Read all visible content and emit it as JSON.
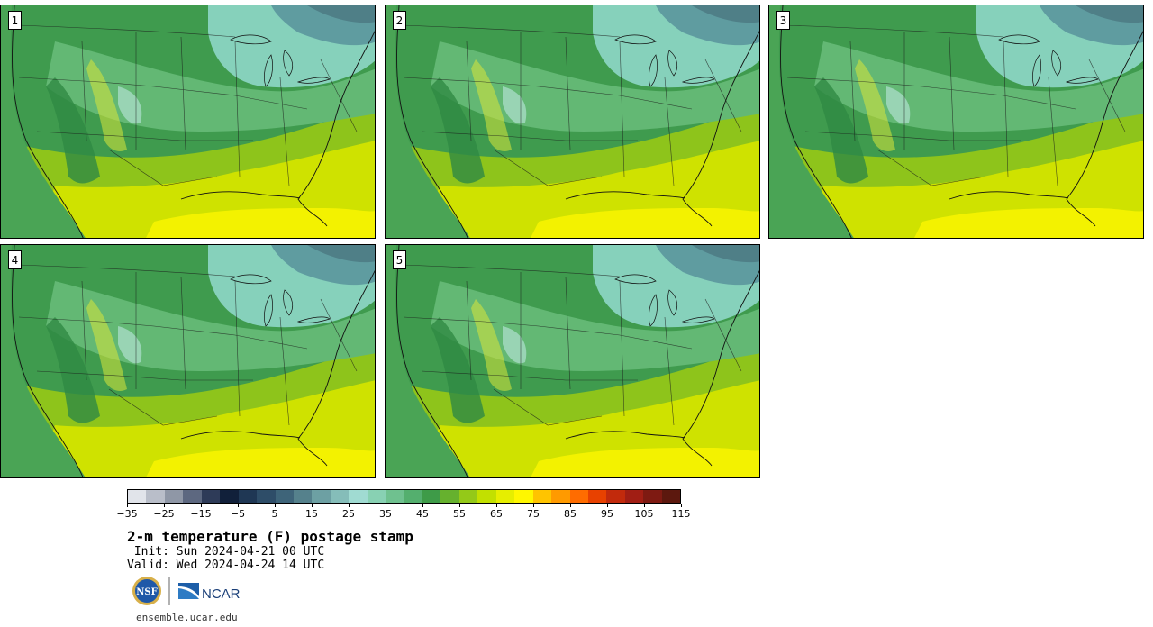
{
  "panels": [
    {
      "label": "1"
    },
    {
      "label": "2"
    },
    {
      "label": "3"
    },
    {
      "label": "4"
    },
    {
      "label": "5"
    }
  ],
  "colorbar": {
    "colors": [
      "#e1e4ea",
      "#b9bec9",
      "#8f97a6",
      "#5d6880",
      "#2e3b58",
      "#11203a",
      "#1f3754",
      "#2e4d68",
      "#3e6479",
      "#55818c",
      "#6da0a3",
      "#85bdb9",
      "#a0dbd2",
      "#88d1b3",
      "#6fc18f",
      "#54af6e",
      "#3e9b48",
      "#66b12e",
      "#94c918",
      "#c2e000",
      "#e6ee00",
      "#fff700",
      "#ffc400",
      "#ff9a00",
      "#ff6c00",
      "#e84100",
      "#c22a0c",
      "#a11e14",
      "#7e1a12",
      "#5c180e"
    ],
    "ticks": [
      "−35",
      "−25",
      "−15",
      "−5",
      "5",
      "15",
      "25",
      "35",
      "45",
      "55",
      "65",
      "75",
      "85",
      "95",
      "105",
      "115"
    ]
  },
  "title": "2-m temperature (F) postage stamp",
  "init": " Init: Sun 2024-04-21 00 UTC",
  "valid": "Valid: Wed 2024-04-24 14 UTC",
  "logos": {
    "nsf": "NSF",
    "ncar": "NCAR"
  },
  "url": "ensemble.ucar.edu"
}
